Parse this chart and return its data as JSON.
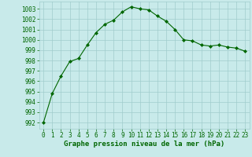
{
  "x": [
    0,
    1,
    2,
    3,
    4,
    5,
    6,
    7,
    8,
    9,
    10,
    11,
    12,
    13,
    14,
    15,
    16,
    17,
    18,
    19,
    20,
    21,
    22,
    23
  ],
  "y": [
    992.0,
    994.8,
    996.5,
    997.9,
    998.2,
    999.5,
    1000.7,
    1001.5,
    1001.9,
    1002.7,
    1003.2,
    1003.0,
    1002.9,
    1002.3,
    1001.8,
    1001.0,
    1000.0,
    999.9,
    999.5,
    999.4,
    999.5,
    999.3,
    999.2,
    998.9
  ],
  "line_color": "#006600",
  "marker": "D",
  "marker_size": 2,
  "bg_color": "#c8eaea",
  "grid_color": "#a0cccc",
  "xlabel": "Graphe pression niveau de la mer (hPa)",
  "ylabel_ticks": [
    992,
    993,
    994,
    995,
    996,
    997,
    998,
    999,
    1000,
    1001,
    1002,
    1003
  ],
  "ylim": [
    991.4,
    1003.7
  ],
  "xlim": [
    -0.5,
    23.5
  ],
  "tick_color": "#006600",
  "label_color": "#006600",
  "xlabel_fontsize": 6.5,
  "ytick_fontsize": 5.5,
  "xtick_fontsize": 5.5
}
